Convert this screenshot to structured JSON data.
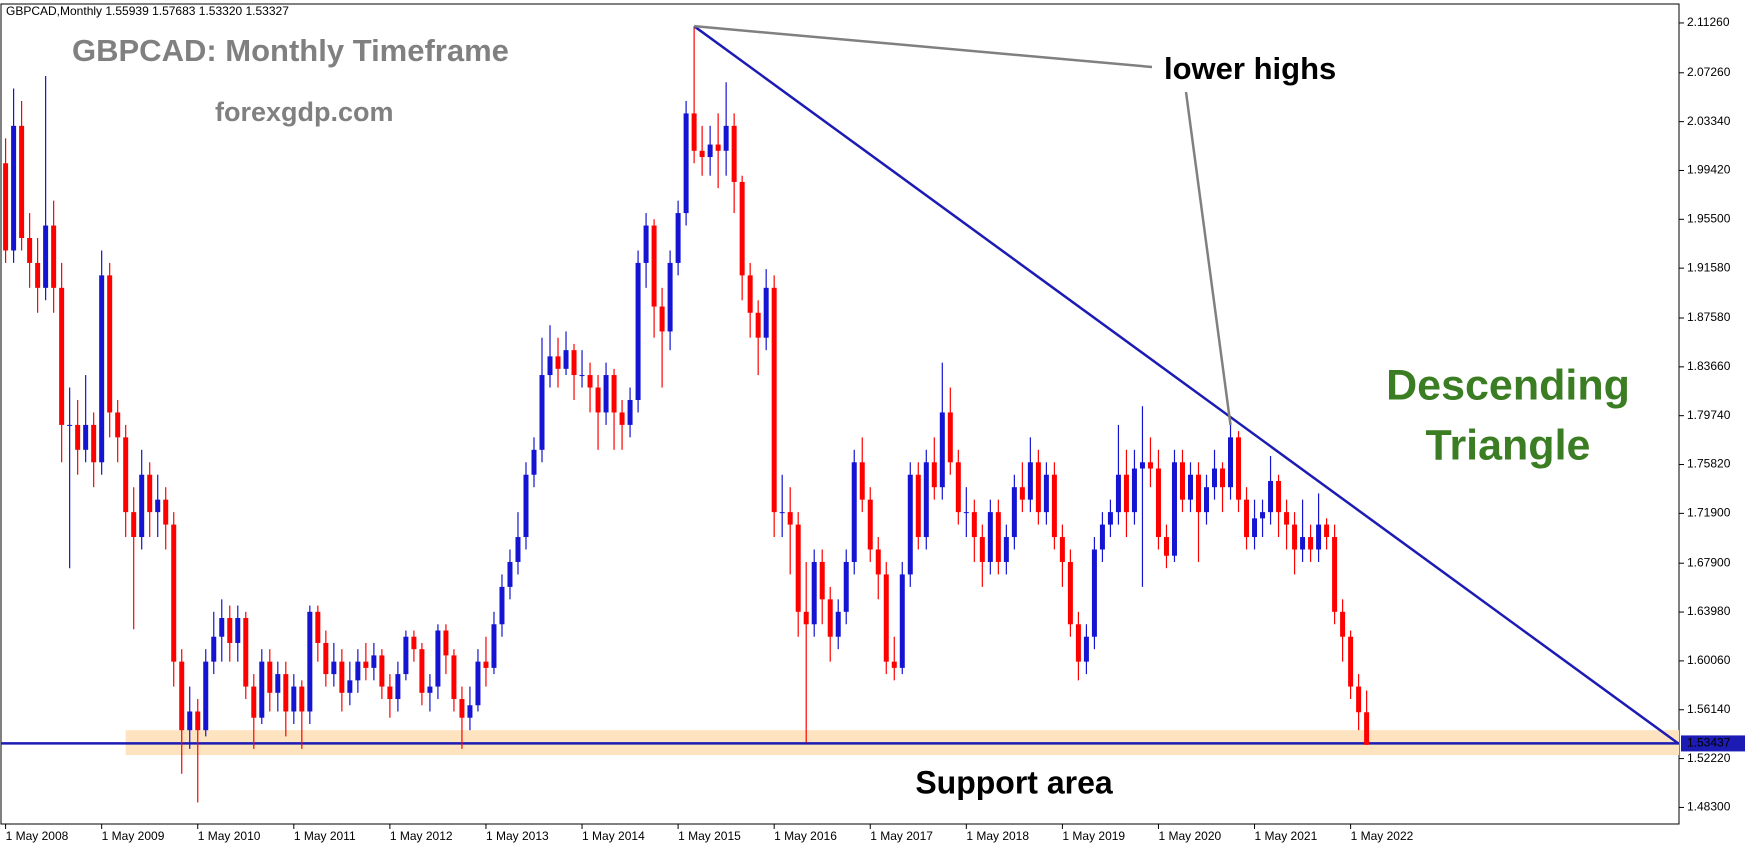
{
  "chart_data": {
    "type": "candlestick",
    "header": "GBPCAD,Monthly  1.55939 1.57683 1.53320 1.53327",
    "title": "GBPCAD: Monthly Timeframe",
    "subtitle": "forexgdp.com",
    "annotations": {
      "lower_highs": "lower highs",
      "pattern": [
        "Descending",
        "Triangle"
      ],
      "support": "Support area"
    },
    "colors": {
      "up": "#1414d2",
      "down": "#ff0000",
      "trendline": "#1c1cb4",
      "support_zone": "#fde3bf",
      "annotation": "#3b7d23",
      "title": "#808080"
    },
    "ylim": [
      1.4697,
      2.1278
    ],
    "yticks": [
      {
        "value": 2.1126,
        "label": "2.11260"
      },
      {
        "value": 2.0726,
        "label": "2.07260"
      },
      {
        "value": 2.0334,
        "label": "2.03340"
      },
      {
        "value": 1.9942,
        "label": "1.99420"
      },
      {
        "value": 1.955,
        "label": "1.95500"
      },
      {
        "value": 1.9158,
        "label": "1.91580"
      },
      {
        "value": 1.8758,
        "label": "1.87580"
      },
      {
        "value": 1.8366,
        "label": "1.83660"
      },
      {
        "value": 1.7974,
        "label": "1.79740"
      },
      {
        "value": 1.7582,
        "label": "1.75820"
      },
      {
        "value": 1.719,
        "label": "1.71900"
      },
      {
        "value": 1.679,
        "label": "1.67900"
      },
      {
        "value": 1.6398,
        "label": "1.63980"
      },
      {
        "value": 1.6006,
        "label": "1.60060"
      },
      {
        "value": 1.5614,
        "label": "1.56140"
      },
      {
        "value": 1.5222,
        "label": "1.52220"
      },
      {
        "value": 1.483,
        "label": "1.48300"
      }
    ],
    "support_level": 1.53437,
    "support_zone": [
      1.525,
      1.545
    ],
    "trendline": {
      "x": [
        86,
        209
      ],
      "y": [
        2.11,
        1.534
      ]
    },
    "categories": [
      "1 May 2008",
      null,
      null,
      null,
      null,
      null,
      null,
      null,
      null,
      null,
      null,
      null,
      "1 May 2009",
      null,
      null,
      null,
      null,
      null,
      null,
      null,
      null,
      null,
      null,
      null,
      "1 May 2010",
      null,
      null,
      null,
      null,
      null,
      null,
      null,
      null,
      null,
      null,
      null,
      "1 May 2011",
      null,
      null,
      null,
      null,
      null,
      null,
      null,
      null,
      null,
      null,
      null,
      "1 May 2012",
      null,
      null,
      null,
      null,
      null,
      null,
      null,
      null,
      null,
      null,
      null,
      "1 May 2013",
      null,
      null,
      null,
      null,
      null,
      null,
      null,
      null,
      null,
      null,
      null,
      "1 May 2014",
      null,
      null,
      null,
      null,
      null,
      null,
      null,
      null,
      null,
      null,
      null,
      "1 May 2015",
      null,
      null,
      null,
      null,
      null,
      null,
      null,
      null,
      null,
      null,
      null,
      "1 May 2016",
      null,
      null,
      null,
      null,
      null,
      null,
      null,
      null,
      null,
      null,
      null,
      "1 May 2017",
      null,
      null,
      null,
      null,
      null,
      null,
      null,
      null,
      null,
      null,
      null,
      "1 May 2018",
      null,
      null,
      null,
      null,
      null,
      null,
      null,
      null,
      null,
      null,
      null,
      "1 May 2019",
      null,
      null,
      null,
      null,
      null,
      null,
      null,
      null,
      null,
      null,
      null,
      "1 May 2020",
      null,
      null,
      null,
      null,
      null,
      null,
      null,
      null,
      null,
      null,
      null,
      "1 May 2021",
      null,
      null,
      null,
      null,
      null,
      null,
      null,
      null,
      null,
      null,
      null,
      "1 May 2022",
      null,
      null
    ],
    "ohlc": [
      [
        2.0,
        2.02,
        1.92,
        1.93
      ],
      [
        1.93,
        2.06,
        1.92,
        2.03
      ],
      [
        2.03,
        2.05,
        1.93,
        1.94
      ],
      [
        1.94,
        1.96,
        1.9,
        1.92
      ],
      [
        1.92,
        1.94,
        1.88,
        1.9
      ],
      [
        1.9,
        2.07,
        1.89,
        1.95
      ],
      [
        1.95,
        1.97,
        1.88,
        1.9
      ],
      [
        1.9,
        1.92,
        1.76,
        1.79
      ],
      [
        1.79,
        1.82,
        1.675,
        1.79
      ],
      [
        1.79,
        1.81,
        1.75,
        1.77
      ],
      [
        1.77,
        1.83,
        1.76,
        1.79
      ],
      [
        1.79,
        1.8,
        1.74,
        1.76
      ],
      [
        1.76,
        1.93,
        1.75,
        1.91
      ],
      [
        1.91,
        1.92,
        1.78,
        1.8
      ],
      [
        1.8,
        1.81,
        1.76,
        1.78
      ],
      [
        1.78,
        1.79,
        1.7,
        1.72
      ],
      [
        1.72,
        1.74,
        1.626,
        1.7
      ],
      [
        1.7,
        1.77,
        1.69,
        1.75
      ],
      [
        1.75,
        1.76,
        1.7,
        1.72
      ],
      [
        1.72,
        1.75,
        1.7,
        1.73
      ],
      [
        1.73,
        1.74,
        1.69,
        1.71
      ],
      [
        1.71,
        1.72,
        1.58,
        1.6
      ],
      [
        1.6,
        1.61,
        1.51,
        1.545
      ],
      [
        1.545,
        1.58,
        1.53,
        1.56
      ],
      [
        1.56,
        1.57,
        1.487,
        1.545
      ],
      [
        1.545,
        1.61,
        1.54,
        1.6
      ],
      [
        1.6,
        1.64,
        1.59,
        1.62
      ],
      [
        1.62,
        1.65,
        1.6,
        1.635
      ],
      [
        1.635,
        1.645,
        1.6,
        1.615
      ],
      [
        1.615,
        1.645,
        1.6,
        1.635
      ],
      [
        1.635,
        1.64,
        1.57,
        1.58
      ],
      [
        1.58,
        1.59,
        1.53,
        1.555
      ],
      [
        1.555,
        1.61,
        1.55,
        1.6
      ],
      [
        1.6,
        1.61,
        1.56,
        1.575
      ],
      [
        1.575,
        1.6,
        1.56,
        1.59
      ],
      [
        1.59,
        1.6,
        1.54,
        1.56
      ],
      [
        1.56,
        1.59,
        1.55,
        1.58
      ],
      [
        1.58,
        1.585,
        1.53,
        1.56
      ],
      [
        1.56,
        1.645,
        1.55,
        1.64
      ],
      [
        1.64,
        1.645,
        1.6,
        1.615
      ],
      [
        1.615,
        1.625,
        1.58,
        1.59
      ],
      [
        1.59,
        1.615,
        1.58,
        1.6
      ],
      [
        1.6,
        1.61,
        1.56,
        1.575
      ],
      [
        1.575,
        1.6,
        1.565,
        1.585
      ],
      [
        1.585,
        1.61,
        1.575,
        1.6
      ],
      [
        1.6,
        1.615,
        1.585,
        1.595
      ],
      [
        1.595,
        1.615,
        1.585,
        1.605
      ],
      [
        1.605,
        1.61,
        1.57,
        1.58
      ],
      [
        1.58,
        1.59,
        1.555,
        1.57
      ],
      [
        1.57,
        1.6,
        1.56,
        1.59
      ],
      [
        1.59,
        1.625,
        1.585,
        1.62
      ],
      [
        1.62,
        1.625,
        1.6,
        1.61
      ],
      [
        1.61,
        1.615,
        1.565,
        1.575
      ],
      [
        1.575,
        1.59,
        1.56,
        1.58
      ],
      [
        1.58,
        1.63,
        1.57,
        1.625
      ],
      [
        1.625,
        1.63,
        1.59,
        1.605
      ],
      [
        1.605,
        1.61,
        1.56,
        1.57
      ],
      [
        1.57,
        1.58,
        1.53,
        1.555
      ],
      [
        1.555,
        1.58,
        1.545,
        1.565
      ],
      [
        1.565,
        1.61,
        1.56,
        1.6
      ],
      [
        1.6,
        1.62,
        1.58,
        1.595
      ],
      [
        1.595,
        1.64,
        1.59,
        1.63
      ],
      [
        1.63,
        1.67,
        1.62,
        1.66
      ],
      [
        1.66,
        1.69,
        1.65,
        1.68
      ],
      [
        1.68,
        1.72,
        1.67,
        1.7
      ],
      [
        1.7,
        1.76,
        1.69,
        1.75
      ],
      [
        1.75,
        1.78,
        1.74,
        1.77
      ],
      [
        1.77,
        1.86,
        1.76,
        1.83
      ],
      [
        1.83,
        1.87,
        1.82,
        1.845
      ],
      [
        1.845,
        1.86,
        1.82,
        1.835
      ],
      [
        1.835,
        1.865,
        1.83,
        1.85
      ],
      [
        1.85,
        1.855,
        1.81,
        1.83
      ],
      [
        1.83,
        1.85,
        1.82,
        1.83
      ],
      [
        1.83,
        1.84,
        1.8,
        1.82
      ],
      [
        1.82,
        1.83,
        1.77,
        1.8
      ],
      [
        1.8,
        1.84,
        1.79,
        1.83
      ],
      [
        1.83,
        1.835,
        1.77,
        1.8
      ],
      [
        1.8,
        1.81,
        1.77,
        1.79
      ],
      [
        1.79,
        1.82,
        1.78,
        1.81
      ],
      [
        1.81,
        1.93,
        1.8,
        1.92
      ],
      [
        1.92,
        1.96,
        1.9,
        1.95
      ],
      [
        1.95,
        1.955,
        1.86,
        1.885
      ],
      [
        1.885,
        1.9,
        1.82,
        1.865
      ],
      [
        1.865,
        1.93,
        1.85,
        1.92
      ],
      [
        1.92,
        1.97,
        1.91,
        1.96
      ],
      [
        1.96,
        2.05,
        1.95,
        2.04
      ],
      [
        2.04,
        2.11,
        2.0,
        2.01
      ],
      [
        2.01,
        2.03,
        1.99,
        2.005
      ],
      [
        2.005,
        2.03,
        1.99,
        2.015
      ],
      [
        2.015,
        2.04,
        1.98,
        2.01
      ],
      [
        2.01,
        2.065,
        1.99,
        2.03
      ],
      [
        2.03,
        2.04,
        1.96,
        1.985
      ],
      [
        1.985,
        1.99,
        1.89,
        1.91
      ],
      [
        1.91,
        1.92,
        1.86,
        1.88
      ],
      [
        1.88,
        1.89,
        1.83,
        1.86
      ],
      [
        1.86,
        1.915,
        1.85,
        1.9
      ],
      [
        1.9,
        1.91,
        1.7,
        1.72
      ],
      [
        1.72,
        1.75,
        1.7,
        1.72
      ],
      [
        1.72,
        1.74,
        1.67,
        1.71
      ],
      [
        1.71,
        1.72,
        1.62,
        1.64
      ],
      [
        1.64,
        1.68,
        1.535,
        1.63
      ],
      [
        1.63,
        1.69,
        1.62,
        1.68
      ],
      [
        1.68,
        1.69,
        1.63,
        1.65
      ],
      [
        1.65,
        1.66,
        1.6,
        1.62
      ],
      [
        1.62,
        1.65,
        1.61,
        1.64
      ],
      [
        1.64,
        1.69,
        1.63,
        1.68
      ],
      [
        1.68,
        1.77,
        1.67,
        1.76
      ],
      [
        1.76,
        1.78,
        1.72,
        1.73
      ],
      [
        1.73,
        1.74,
        1.68,
        1.69
      ],
      [
        1.69,
        1.7,
        1.65,
        1.67
      ],
      [
        1.67,
        1.68,
        1.59,
        1.6
      ],
      [
        1.6,
        1.62,
        1.585,
        1.595
      ],
      [
        1.595,
        1.68,
        1.59,
        1.67
      ],
      [
        1.67,
        1.76,
        1.66,
        1.75
      ],
      [
        1.75,
        1.76,
        1.69,
        1.7
      ],
      [
        1.7,
        1.77,
        1.69,
        1.76
      ],
      [
        1.76,
        1.78,
        1.73,
        1.74
      ],
      [
        1.74,
        1.84,
        1.73,
        1.8
      ],
      [
        1.8,
        1.82,
        1.75,
        1.76
      ],
      [
        1.76,
        1.77,
        1.71,
        1.72
      ],
      [
        1.72,
        1.74,
        1.7,
        1.72
      ],
      [
        1.72,
        1.73,
        1.68,
        1.7
      ],
      [
        1.7,
        1.71,
        1.66,
        1.68
      ],
      [
        1.68,
        1.73,
        1.67,
        1.72
      ],
      [
        1.72,
        1.73,
        1.67,
        1.68
      ],
      [
        1.68,
        1.71,
        1.67,
        1.7
      ],
      [
        1.7,
        1.75,
        1.69,
        1.74
      ],
      [
        1.74,
        1.76,
        1.72,
        1.73
      ],
      [
        1.73,
        1.78,
        1.72,
        1.76
      ],
      [
        1.76,
        1.77,
        1.71,
        1.72
      ],
      [
        1.72,
        1.76,
        1.71,
        1.75
      ],
      [
        1.75,
        1.76,
        1.69,
        1.7
      ],
      [
        1.7,
        1.71,
        1.66,
        1.68
      ],
      [
        1.68,
        1.69,
        1.62,
        1.63
      ],
      [
        1.63,
        1.64,
        1.585,
        1.6
      ],
      [
        1.6,
        1.63,
        1.59,
        1.62
      ],
      [
        1.62,
        1.7,
        1.61,
        1.69
      ],
      [
        1.69,
        1.72,
        1.68,
        1.71
      ],
      [
        1.71,
        1.73,
        1.7,
        1.72
      ],
      [
        1.72,
        1.79,
        1.71,
        1.75
      ],
      [
        1.75,
        1.77,
        1.7,
        1.72
      ],
      [
        1.72,
        1.77,
        1.71,
        1.755
      ],
      [
        1.755,
        1.805,
        1.66,
        1.76
      ],
      [
        1.76,
        1.78,
        1.74,
        1.755
      ],
      [
        1.755,
        1.77,
        1.69,
        1.7
      ],
      [
        1.7,
        1.71,
        1.675,
        1.685
      ],
      [
        1.685,
        1.77,
        1.68,
        1.76
      ],
      [
        1.76,
        1.77,
        1.72,
        1.73
      ],
      [
        1.73,
        1.76,
        1.72,
        1.75
      ],
      [
        1.75,
        1.76,
        1.68,
        1.72
      ],
      [
        1.72,
        1.75,
        1.71,
        1.74
      ],
      [
        1.74,
        1.77,
        1.73,
        1.755
      ],
      [
        1.755,
        1.76,
        1.72,
        1.74
      ],
      [
        1.74,
        1.79,
        1.73,
        1.78
      ],
      [
        1.78,
        1.785,
        1.72,
        1.73
      ],
      [
        1.73,
        1.74,
        1.69,
        1.7
      ],
      [
        1.7,
        1.73,
        1.69,
        1.715
      ],
      [
        1.715,
        1.73,
        1.7,
        1.72
      ],
      [
        1.72,
        1.765,
        1.71,
        1.745
      ],
      [
        1.745,
        1.75,
        1.7,
        1.72
      ],
      [
        1.72,
        1.73,
        1.69,
        1.71
      ],
      [
        1.71,
        1.72,
        1.67,
        1.69
      ],
      [
        1.69,
        1.73,
        1.68,
        1.7
      ],
      [
        1.7,
        1.71,
        1.68,
        1.69
      ],
      [
        1.69,
        1.735,
        1.68,
        1.71
      ],
      [
        1.71,
        1.715,
        1.69,
        1.7
      ],
      [
        1.7,
        1.71,
        1.63,
        1.64
      ],
      [
        1.64,
        1.65,
        1.6,
        1.62
      ],
      [
        1.62,
        1.625,
        1.57,
        1.58
      ],
      [
        1.58,
        1.59,
        1.545,
        1.55939
      ],
      [
        1.55939,
        1.57683,
        1.5332,
        1.53327
      ]
    ]
  }
}
